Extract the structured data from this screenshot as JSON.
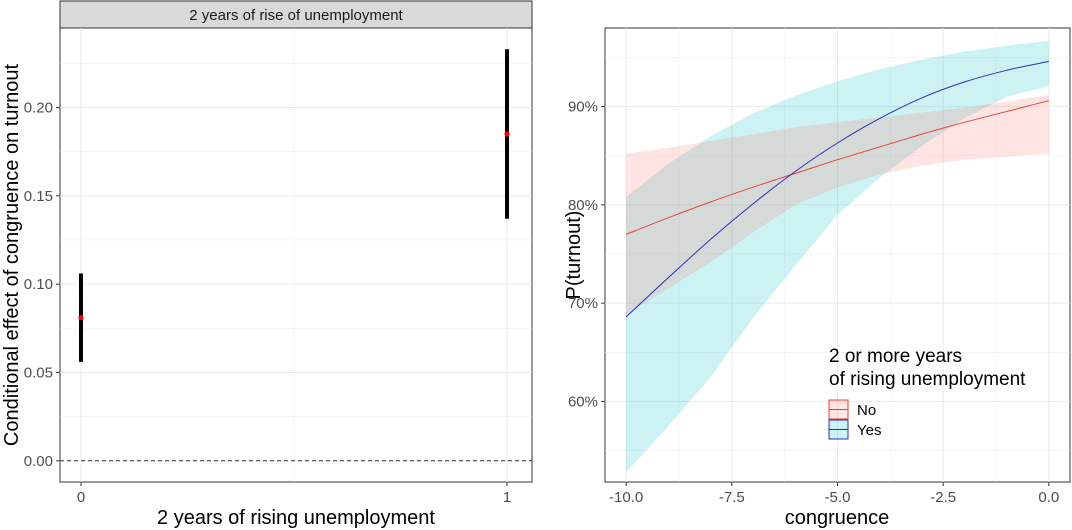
{
  "chart_data": [
    {
      "type": "errorbar",
      "panel_title": "2 years of rise of unemployment",
      "xlabel": "2 years of rising unemployment",
      "ylabel": "Conditional effect of congruence on turnout",
      "x_ticks": [
        "0",
        "1"
      ],
      "y_ticks": [
        "0.00",
        "0.05",
        "0.10",
        "0.15",
        "0.20"
      ],
      "y_tick_values": [
        0,
        0.05,
        0.1,
        0.15,
        0.2
      ],
      "ylim": [
        -0.012,
        0.245
      ],
      "reference_line": 0,
      "grid": true,
      "points": [
        {
          "x": 0,
          "estimate": 0.081,
          "lower": 0.056,
          "upper": 0.106
        },
        {
          "x": 1,
          "estimate": 0.185,
          "lower": 0.137,
          "upper": 0.233
        }
      ],
      "colors": {
        "point": "#ff0000",
        "bar": "#000000",
        "reference": "#333333"
      }
    },
    {
      "type": "line",
      "xlabel": "congruence",
      "ylabel": "P(turnout)",
      "x_ticks": [
        "-10.0",
        "-7.5",
        "-5.0",
        "-2.5",
        "0.0"
      ],
      "x_tick_values": [
        -10,
        -7.5,
        -5,
        -2.5,
        0
      ],
      "y_ticks": [
        "60%",
        "70%",
        "80%",
        "90%"
      ],
      "y_tick_values": [
        0.6,
        0.7,
        0.8,
        0.9
      ],
      "xlim": [
        -10.5,
        0.5
      ],
      "ylim": [
        0.518,
        0.98
      ],
      "grid": true,
      "legend_title": "2 or more years\nof rising unemployment",
      "legend_position": "bottom-right-inside",
      "x": [
        -10,
        -9,
        -8,
        -7,
        -6,
        -5,
        -4,
        -3,
        -2,
        -1,
        0
      ],
      "series": [
        {
          "name": "No",
          "color": "#e8453c",
          "ribbon_color": "#f8766d",
          "values": [
            0.77,
            0.787,
            0.803,
            0.818,
            0.832,
            0.846,
            0.859,
            0.872,
            0.884,
            0.895,
            0.906
          ],
          "lower": [
            0.688,
            0.715,
            0.742,
            0.772,
            0.8,
            0.818,
            0.831,
            0.84,
            0.846,
            0.849,
            0.852
          ],
          "upper": [
            0.852,
            0.858,
            0.865,
            0.872,
            0.879,
            0.884,
            0.889,
            0.894,
            0.899,
            0.905,
            0.912
          ]
        },
        {
          "name": "Yes",
          "color": "#2e2eb8",
          "ribbon_color": "#00bfc4",
          "values": [
            0.686,
            0.726,
            0.765,
            0.801,
            0.834,
            0.863,
            0.888,
            0.909,
            0.925,
            0.937,
            0.946
          ],
          "lower": [
            0.528,
            0.575,
            0.625,
            0.685,
            0.738,
            0.79,
            0.828,
            0.86,
            0.888,
            0.91,
            0.921
          ],
          "upper": [
            0.808,
            0.842,
            0.87,
            0.893,
            0.911,
            0.926,
            0.938,
            0.948,
            0.956,
            0.962,
            0.967
          ]
        }
      ]
    }
  ]
}
